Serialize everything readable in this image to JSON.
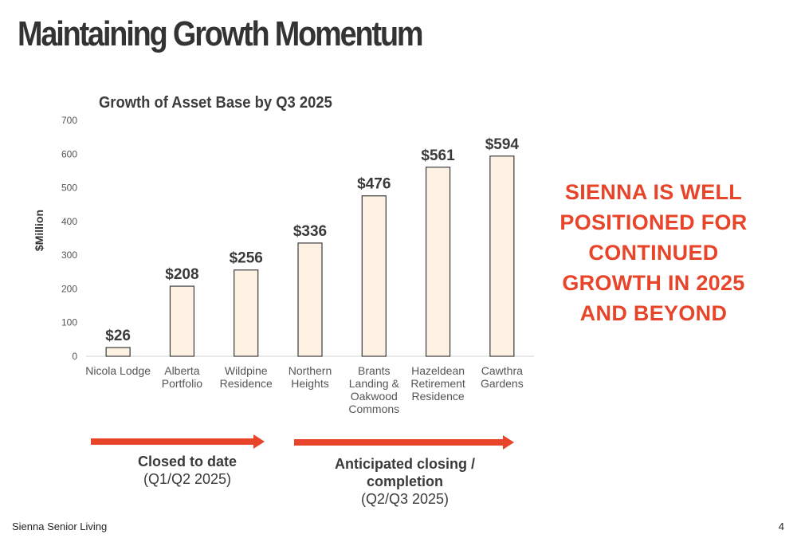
{
  "slide": {
    "title": "Maintaining Growth Momentum",
    "callout": "SIENNA IS WELL POSITIONED FOR CONTINUED GROWTH IN 2025 AND BEYOND",
    "footer_left": "Sienna Senior Living",
    "page_number": "4"
  },
  "phases": [
    {
      "label": "Closed to date",
      "sub": "(Q1/Q2 2025)"
    },
    {
      "label": "Anticipated closing / completion",
      "sub": "(Q2/Q3 2025)"
    }
  ],
  "colors": {
    "accent": "#e8442a",
    "bar_fill": "#fdf1e4",
    "bar_stroke": "#3a3a3a",
    "title": "#333333"
  },
  "chart_data": {
    "type": "bar",
    "title": "Growth of Asset Base by Q3 2025",
    "xlabel": "",
    "ylabel": "$Million",
    "ylim": [
      0,
      700
    ],
    "yticks": [
      0,
      100,
      200,
      300,
      400,
      500,
      600,
      700
    ],
    "grid": false,
    "categories": [
      [
        "Nicola Lodge"
      ],
      [
        "Alberta",
        "Portfolio"
      ],
      [
        "Wildpine",
        "Residence"
      ],
      [
        "Northern",
        "Heights"
      ],
      [
        "Brants",
        "Landing &",
        "Oakwood",
        "Commons"
      ],
      [
        "Hazeldean",
        "Retirement",
        "Residence"
      ],
      [
        "Cawthra",
        "Gardens"
      ]
    ],
    "values": [
      26,
      208,
      256,
      336,
      476,
      561,
      594
    ],
    "data_labels": [
      "$26",
      "$208",
      "$256",
      "$336",
      "$476",
      "$561",
      "$594"
    ]
  }
}
